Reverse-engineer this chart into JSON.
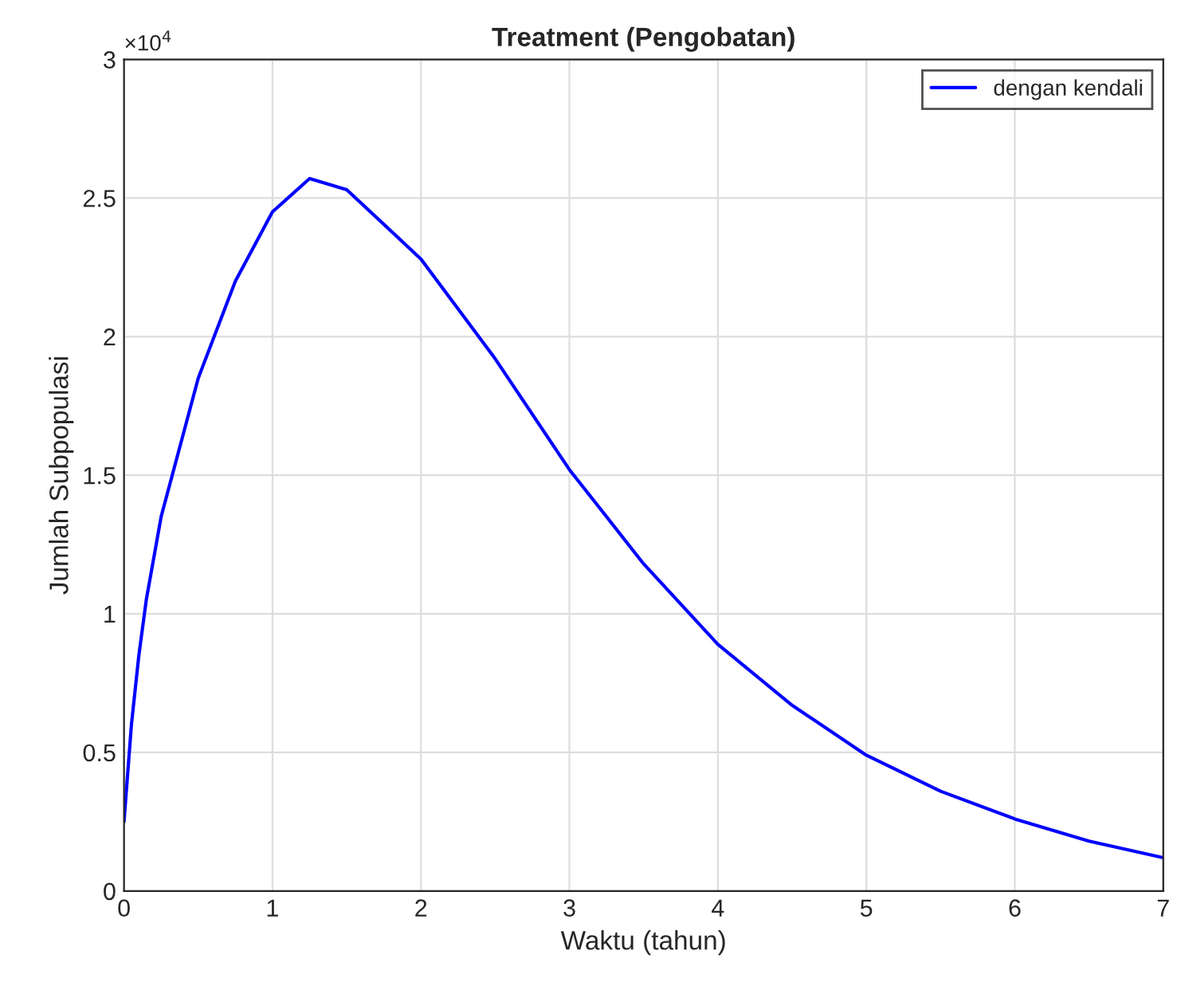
{
  "chart_data": {
    "type": "line",
    "title": "Treatment (Pengobatan)",
    "xlabel": "Waktu (tahun)",
    "ylabel": "Jumlah Subpopulasi",
    "annotations": [
      "×10$^{4}$"
    ],
    "x": [
      0,
      0.05,
      0.1,
      0.15,
      0.25,
      0.5,
      0.75,
      1.0,
      1.25,
      1.5,
      2.0,
      2.5,
      3.0,
      3.5,
      4.0,
      4.5,
      5.0,
      5.5,
      6.0,
      6.5,
      7.0
    ],
    "series": [
      {
        "name": "dengan kendali",
        "color": "#0000ff",
        "values": [
          0.25,
          0.6,
          0.85,
          1.05,
          1.35,
          1.85,
          2.2,
          2.45,
          2.57,
          2.53,
          2.28,
          1.92,
          1.52,
          1.18,
          0.89,
          0.67,
          0.49,
          0.36,
          0.26,
          0.18,
          0.12
        ]
      }
    ],
    "xlim": [
      0,
      7
    ],
    "xticks": [
      0,
      1,
      2,
      3,
      4,
      5,
      6,
      7
    ],
    "ylim": [
      0,
      3
    ],
    "yticks": [
      0,
      0.5,
      1,
      1.5,
      2,
      2.5,
      3
    ],
    "grid": true,
    "legend": "top right",
    "marker": "none",
    "line_style": "solid"
  }
}
